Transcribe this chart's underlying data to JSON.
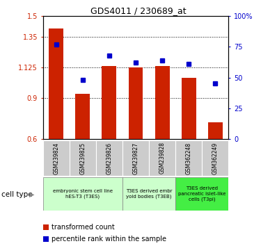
{
  "title": "GDS4011 / 230689_at",
  "samples": [
    "GSM239824",
    "GSM239825",
    "GSM239826",
    "GSM239827",
    "GSM239828",
    "GSM362248",
    "GSM362249"
  ],
  "transformed_count": [
    1.41,
    0.93,
    1.135,
    1.125,
    1.135,
    1.05,
    0.72
  ],
  "percentile_rank": [
    77,
    48,
    68,
    62,
    64,
    61,
    45
  ],
  "ylim_left": [
    0.6,
    1.5
  ],
  "ylim_right": [
    0,
    100
  ],
  "yticks_left": [
    0.6,
    0.9,
    1.125,
    1.35,
    1.5
  ],
  "ytick_labels_left": [
    "0.6",
    "0.9",
    "1.125",
    "1.35",
    "1.5"
  ],
  "yticks_right": [
    0,
    25,
    50,
    75,
    100
  ],
  "ytick_labels_right": [
    "0",
    "25",
    "50",
    "75",
    "100%"
  ],
  "bar_color": "#cc2200",
  "dot_color": "#0000cc",
  "baseline": 0.6,
  "group_configs": [
    {
      "start": 0,
      "end": 2,
      "color": "#ccffcc",
      "label": "embryonic stem cell line\nhES-T3 (T3ES)"
    },
    {
      "start": 3,
      "end": 4,
      "color": "#ccffcc",
      "label": "T3ES derived embr\nyoid bodies (T3EB)"
    },
    {
      "start": 5,
      "end": 6,
      "color": "#44ee44",
      "label": "T3ES derived\npancreatic islet-like\ncells (T3pi)"
    }
  ],
  "cell_type_label": "cell type",
  "legend_bar": "transformed count",
  "legend_dot": "percentile rank within the sample",
  "tick_area_color": "#cccccc"
}
